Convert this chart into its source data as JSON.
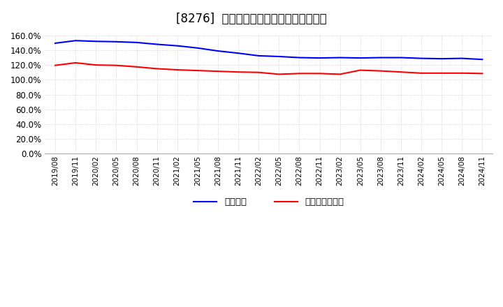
{
  "title": "[8276]  固定比率、固定長期適合率の推移",
  "x_labels": [
    "2019/08",
    "2019/11",
    "2020/02",
    "2020/05",
    "2020/08",
    "2020/11",
    "2021/02",
    "2021/05",
    "2021/08",
    "2021/11",
    "2022/02",
    "2022/05",
    "2022/08",
    "2022/11",
    "2023/02",
    "2023/05",
    "2023/08",
    "2023/11",
    "2024/02",
    "2024/05",
    "2024/08",
    "2024/11"
  ],
  "fixed_ratio": [
    149.5,
    153.0,
    152.0,
    151.5,
    150.5,
    148.0,
    146.0,
    143.0,
    139.0,
    136.0,
    132.5,
    131.5,
    130.0,
    129.5,
    130.0,
    129.5,
    130.0,
    130.0,
    129.0,
    128.5,
    129.0,
    127.5
  ],
  "fixed_long_ratio": [
    119.5,
    123.0,
    120.0,
    119.5,
    117.5,
    115.0,
    113.5,
    112.5,
    111.5,
    110.5,
    110.0,
    107.5,
    108.5,
    108.5,
    107.5,
    113.0,
    112.0,
    110.5,
    109.0,
    109.0,
    109.0,
    108.5
  ],
  "line1_color": "#0000ff",
  "line2_color": "#ff0000",
  "legend1": "固定比率",
  "legend2": "固定長期適合率",
  "ylim": [
    0,
    160
  ],
  "yticks": [
    0,
    20,
    40,
    60,
    80,
    100,
    120,
    140,
    160
  ],
  "background_color": "#ffffff",
  "grid_color": "#c8c8c8",
  "title_fontsize": 12,
  "tick_fontsize": 7.5,
  "ytick_fontsize": 8.5,
  "legend_fontsize": 9.5
}
